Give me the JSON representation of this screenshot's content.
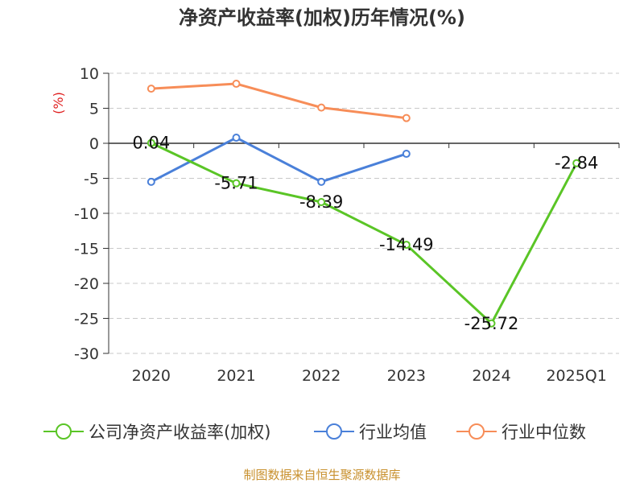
{
  "chart_data": {
    "type": "line",
    "title": "净资产收益率(加权)历年情况(%)",
    "ylabel": "(%)",
    "xlabel": "",
    "categories": [
      "2020",
      "2021",
      "2022",
      "2023",
      "2024",
      "2025Q1"
    ],
    "ylim": [
      -30,
      10
    ],
    "yticks": [
      10,
      5,
      0,
      -5,
      -10,
      -15,
      -20,
      -25,
      -30
    ],
    "grid": true,
    "legend_position": "bottom",
    "series": [
      {
        "name": "公司净资产收益率(加权)",
        "color": "#5ac526",
        "values": [
          0.04,
          -5.71,
          -8.39,
          -14.49,
          -25.72,
          -2.84
        ],
        "labels": [
          "0.04",
          "-5.71",
          "-8.39",
          "-14.49",
          "-25.72",
          "-2.84"
        ]
      },
      {
        "name": "行业均值",
        "color": "#4a80d9",
        "values": [
          -5.5,
          0.8,
          -5.5,
          -1.5,
          null,
          null
        ]
      },
      {
        "name": "行业中位数",
        "color": "#f78d58",
        "values": [
          7.8,
          8.5,
          5.1,
          3.6,
          null,
          null
        ]
      }
    ]
  },
  "source": "制图数据来自恒生聚源数据库"
}
